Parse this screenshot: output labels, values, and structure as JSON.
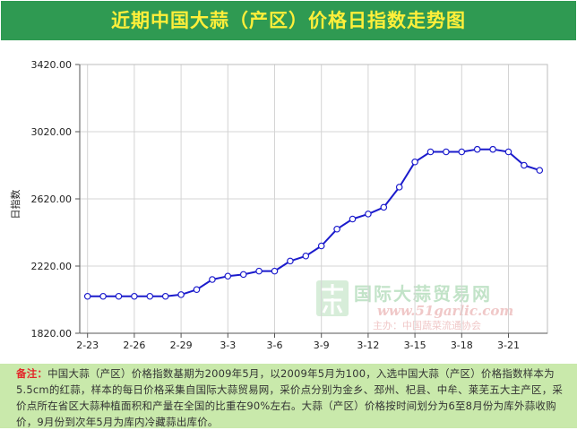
{
  "title": "近期中国大蒜（产区）价格日指数走势图",
  "colors": {
    "title_bg": "#2f9a52",
    "title_text": "#ffef3a",
    "line": "#1b1bcc",
    "note_bg": "#c9e9ab",
    "note_label": "#e3282a"
  },
  "watermark": {
    "name": "国际大蒜贸易网",
    "url": "www.51garlic.com",
    "sub": "主办：中国蔬菜流通协会"
  },
  "note": {
    "label": "备注：",
    "text": "中国大蒜（产区）价格指数基期为2009年5月，以2009年5月为100，入选中国大蒜（产区）价格指数样本为5.5cm的红蒜，样本的每日价格采集自国际大蒜贸易网，采价点分别为金乡、邳州、杞县、中牟、莱芜五大主产区，采价点所在省区大蒜种植面积和产量在全国的比重在90%左右。大蒜（产区）价格按时间划分为6至8月份为库外蒜收购价，9月份到次年5月为库内冷藏蒜出库价。"
  },
  "chart_data": {
    "type": "line",
    "title": "",
    "xlabel": "",
    "ylabel": "日指数",
    "ylim": [
      1820,
      3420
    ],
    "yticks": [
      "3420.00",
      "3020.00",
      "2620.00",
      "2220.00",
      "1820.00"
    ],
    "xticks": [
      "2-23",
      "2-26",
      "2-29",
      "3-3",
      "3-6",
      "3-9",
      "3-12",
      "3-15",
      "3-18",
      "3-21"
    ],
    "grid": true,
    "series": [
      {
        "name": "",
        "x": [
          "2-23",
          "2-24",
          "2-25",
          "2-26",
          "2-27",
          "2-28",
          "2-29",
          "3-1",
          "3-2",
          "3-3",
          "3-4",
          "3-5",
          "3-6",
          "3-7",
          "3-8",
          "3-9",
          "3-10",
          "3-11",
          "3-12",
          "3-13",
          "3-14",
          "3-15",
          "3-16",
          "3-17",
          "3-18",
          "3-19",
          "3-20",
          "3-21",
          "3-22",
          "3-23"
        ],
        "values": [
          2040,
          2040,
          2040,
          2040,
          2040,
          2040,
          2050,
          2080,
          2140,
          2160,
          2170,
          2190,
          2190,
          2250,
          2280,
          2340,
          2440,
          2500,
          2530,
          2570,
          2690,
          2840,
          2900,
          2900,
          2900,
          2915,
          2915,
          2900,
          2820,
          2790
        ]
      }
    ]
  }
}
